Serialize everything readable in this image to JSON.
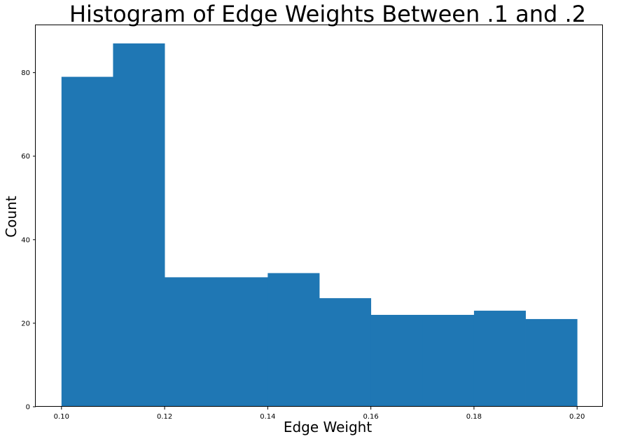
{
  "chart_data": {
    "type": "bar",
    "title": "Histogram of Edge Weights Between .1 and .2",
    "xlabel": "Edge Weight",
    "ylabel": "Count",
    "bins": [
      {
        "x0": 0.1,
        "x1": 0.11,
        "count": 79
      },
      {
        "x0": 0.11,
        "x1": 0.12,
        "count": 87
      },
      {
        "x0": 0.12,
        "x1": 0.13,
        "count": 31
      },
      {
        "x0": 0.13,
        "x1": 0.14,
        "count": 31
      },
      {
        "x0": 0.14,
        "x1": 0.15,
        "count": 32
      },
      {
        "x0": 0.15,
        "x1": 0.16,
        "count": 26
      },
      {
        "x0": 0.16,
        "x1": 0.17,
        "count": 22
      },
      {
        "x0": 0.17,
        "x1": 0.18,
        "count": 22
      },
      {
        "x0": 0.18,
        "x1": 0.19,
        "count": 23
      },
      {
        "x0": 0.19,
        "x1": 0.2,
        "count": 21
      }
    ],
    "xlim": [
      0.095,
      0.205
    ],
    "ylim": [
      0,
      91.35
    ],
    "xticks": [
      0.1,
      0.12,
      0.14,
      0.16,
      0.18,
      0.2
    ],
    "xtick_labels": [
      "0.10",
      "0.12",
      "0.14",
      "0.16",
      "0.18",
      "0.20"
    ],
    "yticks": [
      0,
      20,
      40,
      60,
      80
    ],
    "ytick_labels": [
      "0",
      "20",
      "40",
      "60",
      "80"
    ],
    "grid": false,
    "bar_color": "#1f77b4"
  }
}
